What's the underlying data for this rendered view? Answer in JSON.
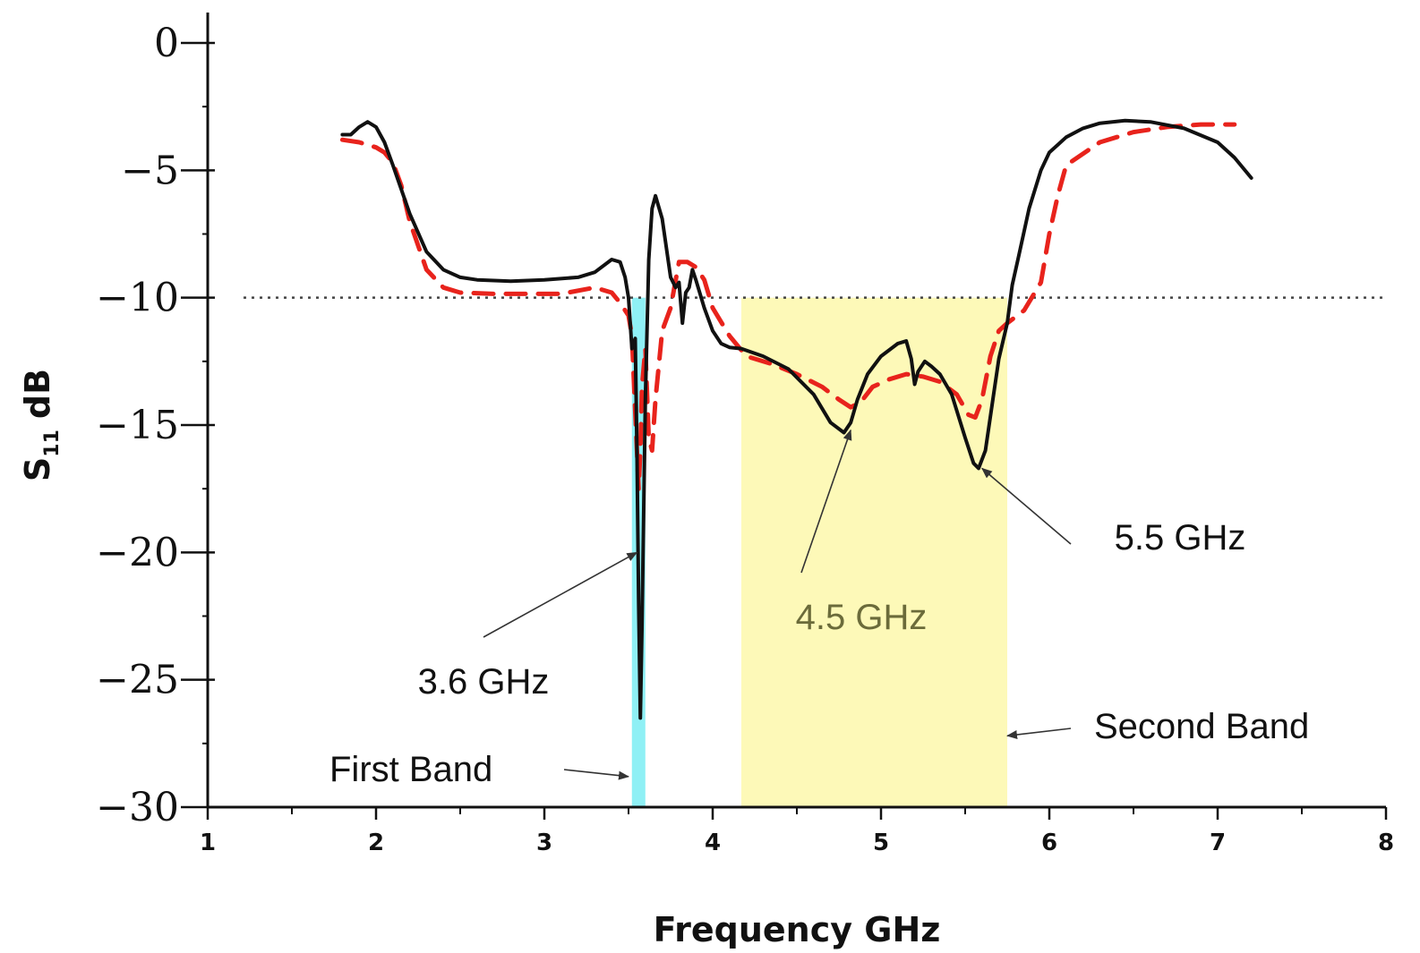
{
  "chart_data": {
    "type": "line",
    "title": "",
    "xlabel": "Frequency GHz",
    "ylabel_main": "S",
    "ylabel_sub": "11",
    "ylabel_unit": "dB",
    "xlim": [
      1,
      8
    ],
    "ylim": [
      -30,
      0
    ],
    "xticks": [
      1,
      2,
      3,
      4,
      5,
      6,
      7,
      8
    ],
    "yticks": [
      0,
      -5,
      -10,
      -15,
      -20,
      -25,
      -30
    ],
    "ytick_labels": [
      "0",
      "−5",
      "−10",
      "−15",
      "−20",
      "−25",
      "−30"
    ],
    "threshold": -10,
    "bands": [
      {
        "name": "First Band",
        "x0": 3.52,
        "x1": 3.6,
        "color": "#8ff0f5"
      },
      {
        "name": "Second Band",
        "x0": 4.17,
        "x1": 5.75,
        "color": "#fdf9b8"
      }
    ],
    "series": [
      {
        "name": "solid",
        "color": "#111111",
        "dash": false,
        "x": [
          1.8,
          1.85,
          1.9,
          1.95,
          2.0,
          2.05,
          2.1,
          2.2,
          2.3,
          2.4,
          2.5,
          2.6,
          2.8,
          3.0,
          3.2,
          3.3,
          3.4,
          3.45,
          3.48,
          3.5,
          3.52,
          3.54,
          3.55,
          3.56,
          3.57,
          3.58,
          3.6,
          3.62,
          3.64,
          3.66,
          3.7,
          3.75,
          3.78,
          3.8,
          3.82,
          3.84,
          3.86,
          3.88,
          3.9,
          3.95,
          4.0,
          4.05,
          4.1,
          4.17,
          4.3,
          4.45,
          4.6,
          4.7,
          4.78,
          4.82,
          4.86,
          4.92,
          5.0,
          5.1,
          5.15,
          5.18,
          5.2,
          5.22,
          5.26,
          5.3,
          5.35,
          5.42,
          5.5,
          5.55,
          5.58,
          5.62,
          5.66,
          5.7,
          5.75,
          5.78,
          5.82,
          5.88,
          5.95,
          6.0,
          6.05,
          6.1,
          6.2,
          6.3,
          6.45,
          6.6,
          6.8,
          7.0,
          7.1,
          7.2
        ],
        "y": [
          -3.6,
          -3.6,
          -3.3,
          -3.1,
          -3.3,
          -3.9,
          -4.8,
          -6.7,
          -8.2,
          -8.9,
          -9.2,
          -9.3,
          -9.35,
          -9.3,
          -9.2,
          -9.0,
          -8.5,
          -8.6,
          -9.2,
          -10.0,
          -12.0,
          -11.6,
          -16.0,
          -22.0,
          -26.5,
          -23.0,
          -14.0,
          -8.5,
          -6.5,
          -6.0,
          -6.9,
          -9.2,
          -9.6,
          -9.4,
          -11.0,
          -9.8,
          -9.6,
          -8.9,
          -9.3,
          -10.4,
          -11.3,
          -11.8,
          -11.95,
          -12.0,
          -12.3,
          -12.8,
          -13.8,
          -14.9,
          -15.3,
          -14.9,
          -14.0,
          -13.0,
          -12.3,
          -11.8,
          -11.7,
          -12.4,
          -13.4,
          -12.9,
          -12.5,
          -12.7,
          -13.0,
          -13.8,
          -15.5,
          -16.5,
          -16.7,
          -16.0,
          -14.2,
          -12.4,
          -11.0,
          -9.5,
          -8.3,
          -6.5,
          -5.0,
          -4.3,
          -4.0,
          -3.7,
          -3.35,
          -3.15,
          -3.05,
          -3.1,
          -3.35,
          -3.9,
          -4.5,
          -5.3
        ]
      },
      {
        "name": "dashed",
        "color": "#e8231c",
        "dash": true,
        "x": [
          1.8,
          1.9,
          2.0,
          2.05,
          2.1,
          2.15,
          2.2,
          2.3,
          2.4,
          2.5,
          2.7,
          2.9,
          3.1,
          3.3,
          3.4,
          3.45,
          3.48,
          3.5,
          3.52,
          3.54,
          3.56,
          3.57,
          3.58,
          3.6,
          3.62,
          3.64,
          3.66,
          3.7,
          3.75,
          3.8,
          3.85,
          3.9,
          3.95,
          4.0,
          4.1,
          4.2,
          4.35,
          4.5,
          4.65,
          4.75,
          4.82,
          4.88,
          4.95,
          5.05,
          5.15,
          5.25,
          5.35,
          5.45,
          5.52,
          5.56,
          5.6,
          5.65,
          5.7,
          5.75,
          5.85,
          5.95,
          6.0,
          6.05,
          6.1,
          6.3,
          6.5,
          6.7,
          6.9,
          7.1
        ],
        "y": [
          -3.8,
          -3.9,
          -4.1,
          -4.3,
          -4.7,
          -5.6,
          -7.0,
          -8.9,
          -9.6,
          -9.8,
          -9.85,
          -9.85,
          -9.85,
          -9.6,
          -9.8,
          -10.2,
          -10.5,
          -10.7,
          -11.5,
          -14.5,
          -17.5,
          -16.0,
          -13.5,
          -12.0,
          -15.5,
          -16.0,
          -14.0,
          -11.3,
          -10.4,
          -8.6,
          -8.6,
          -8.8,
          -9.3,
          -10.4,
          -11.5,
          -12.3,
          -12.6,
          -13.0,
          -13.5,
          -14.0,
          -14.3,
          -14.1,
          -13.5,
          -13.2,
          -13.0,
          -13.1,
          -13.3,
          -13.8,
          -14.6,
          -14.7,
          -14.0,
          -12.3,
          -11.3,
          -11.0,
          -10.5,
          -9.4,
          -7.5,
          -6.0,
          -4.8,
          -3.9,
          -3.5,
          -3.3,
          -3.2,
          -3.2
        ]
      }
    ],
    "annotations": [
      {
        "text": "3.6 GHz",
        "target_x": 3.55,
        "target_y": -20.0
      },
      {
        "text": "4.5 GHz",
        "target_x": 4.82,
        "target_y": -15.2
      },
      {
        "text": "5.5 GHz",
        "target_x": 5.6,
        "target_y": -16.7
      },
      {
        "text": "First Band",
        "target_x": 3.5,
        "target_y": -28.8
      },
      {
        "text": "Second Band",
        "target_x": 5.75,
        "target_y": -27.2
      }
    ]
  }
}
